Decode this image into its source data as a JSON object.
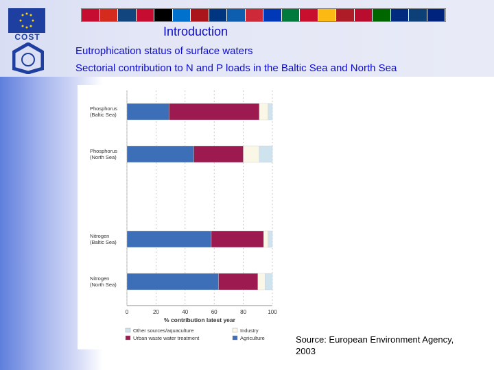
{
  "header": {
    "intro": "Introduction",
    "subtitle1": "Eutrophication status of surface waters",
    "subtitle2": "Sectorial contribution to N and P loads in the Baltic Sea and North Sea"
  },
  "logo": {
    "cost_text": "COST"
  },
  "flag_colors": [
    "#c60c30",
    "#d52b1e",
    "#11457e",
    "#c60c30",
    "#000000",
    "#0072ce",
    "#aa151b",
    "#003580",
    "#0d5eaf",
    "#ce2939",
    "#0038b8",
    "#007a3d",
    "#c8102e",
    "#fdb913",
    "#ae1c28",
    "#ba0c2f",
    "#006600",
    "#002b7f",
    "#0c4076",
    "#00247d"
  ],
  "source": {
    "line1": "Source: European Environment Agency,",
    "line2": "2003"
  },
  "chart_data": {
    "type": "bar",
    "orientation": "horizontal",
    "stacked": true,
    "categories": [
      "Phosphorus\n(Baltic Sea)",
      "Phosphorus\n(North Sea)",
      "Nitrogen\n(Baltic Sea)",
      "Nitrogen\n(North Sea)"
    ],
    "series": [
      {
        "name": "Agriculture",
        "color": "#3d6fb8",
        "values": [
          29,
          46,
          58,
          63
        ]
      },
      {
        "name": "Urban waste water treatment",
        "color": "#9c1a4f",
        "values": [
          62,
          34,
          36,
          27
        ]
      },
      {
        "name": "Industry",
        "color": "#fbf7e6",
        "values": [
          6,
          11,
          3,
          5
        ]
      },
      {
        "name": "Other sources/aquaculture",
        "color": "#cfe3ef",
        "values": [
          3,
          9,
          3,
          5
        ]
      }
    ],
    "xlabel": "% contribution latest year",
    "xticks": [
      "0",
      "20",
      "40",
      "60",
      "80",
      "100"
    ],
    "xlim": [
      0,
      100
    ],
    "legend": [
      {
        "label": "Other sources/aquaculture",
        "color": "#cfe3ef"
      },
      {
        "label": "Industry",
        "color": "#fbf7e6"
      },
      {
        "label": "Urban waste water treatment",
        "color": "#9c1a4f"
      },
      {
        "label": "Agriculture",
        "color": "#3d6fb8"
      }
    ],
    "legend_position": "bottom"
  }
}
